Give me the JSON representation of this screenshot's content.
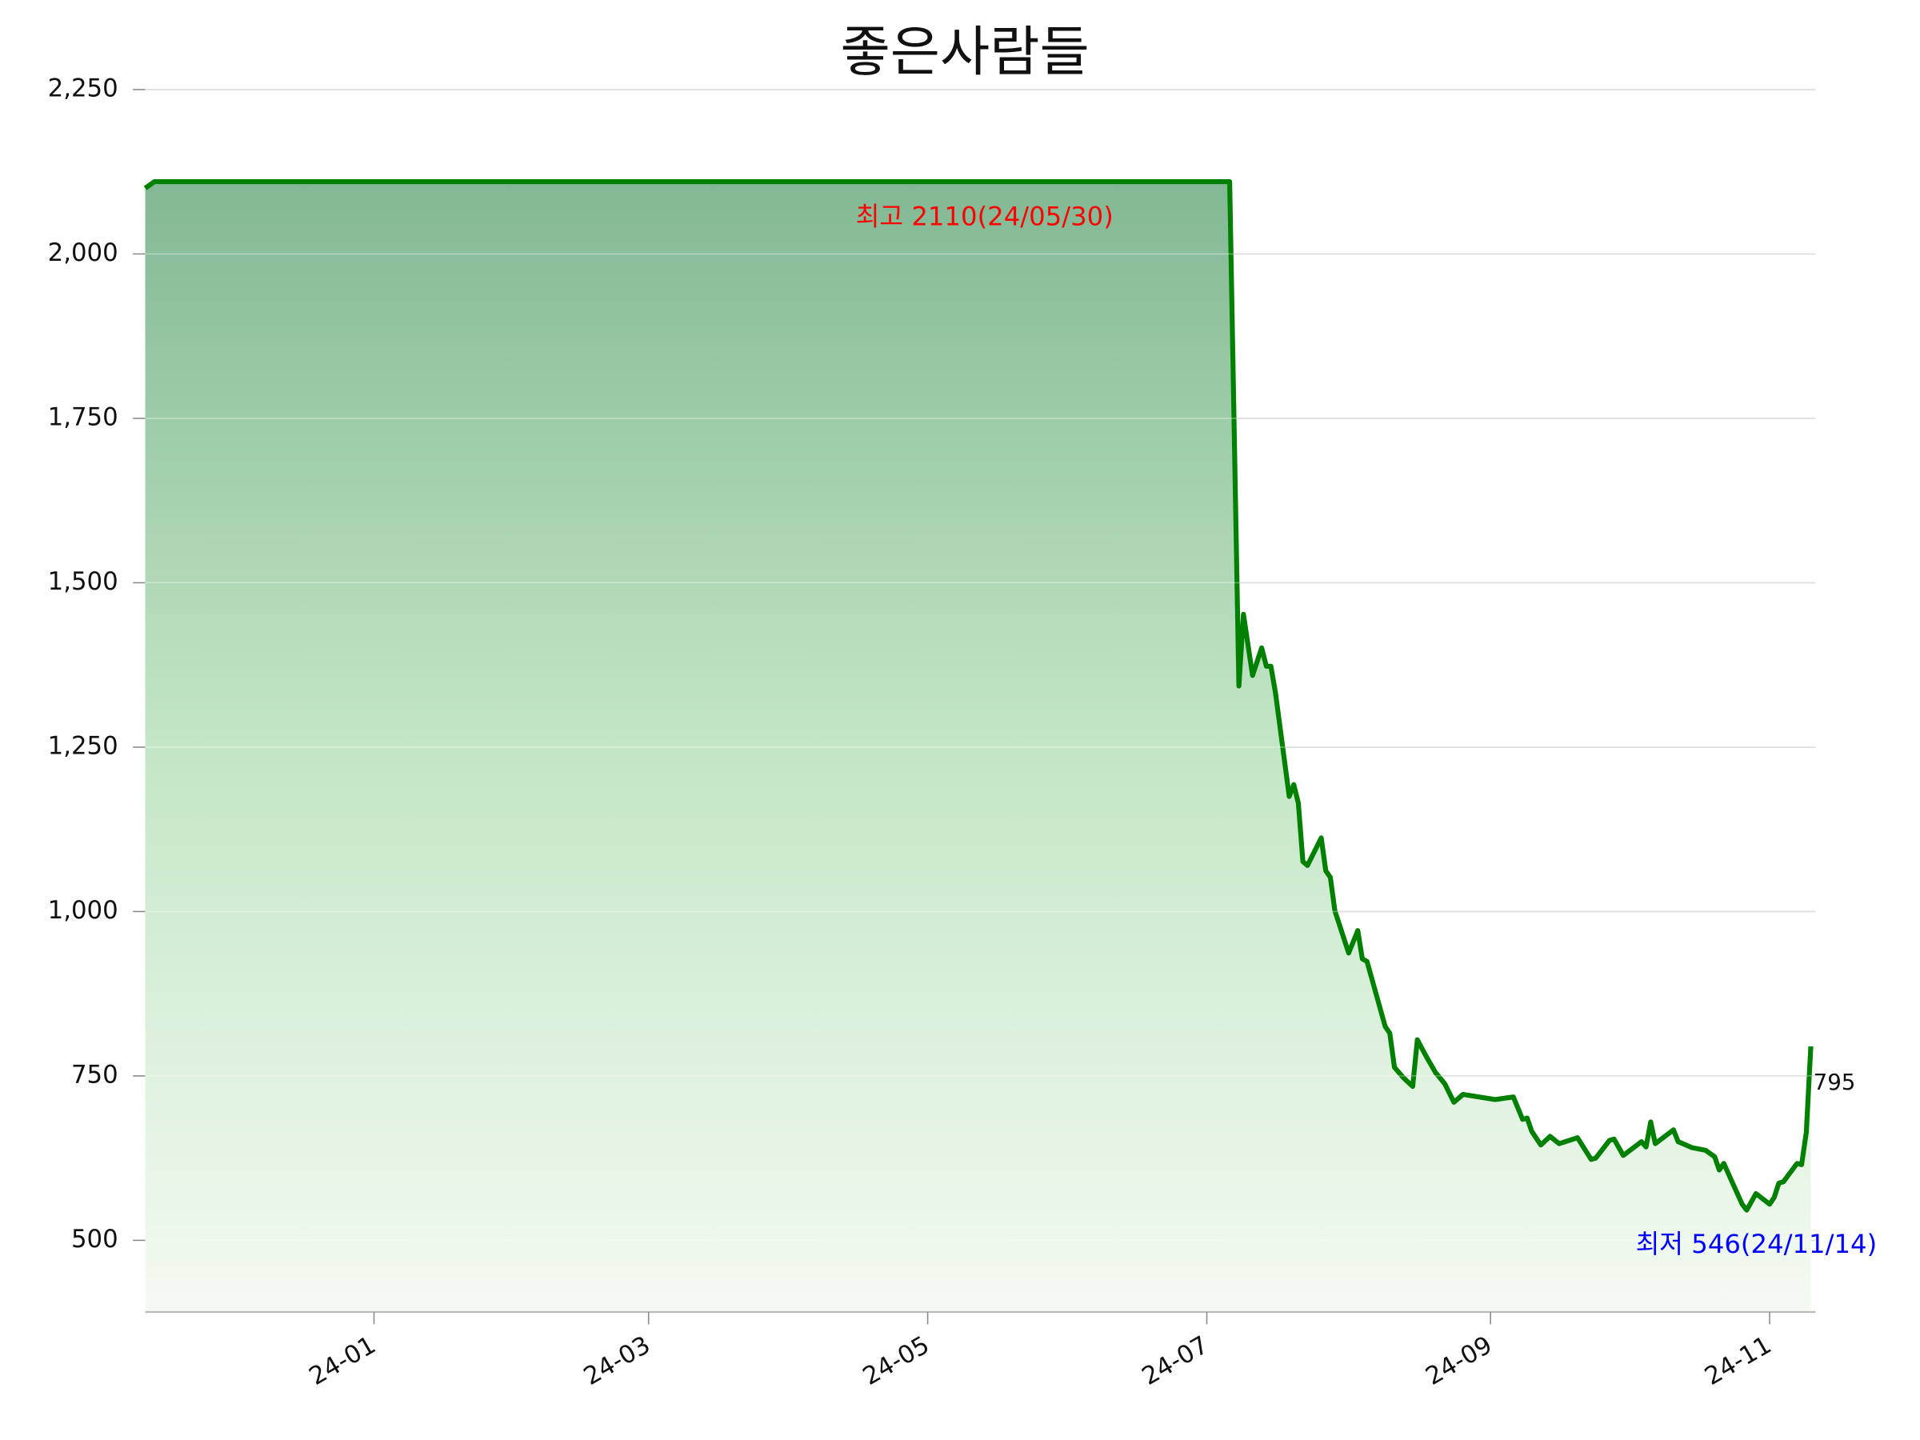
{
  "chart_data": {
    "type": "line",
    "title": "좋은사람들",
    "x": [
      "2023-11-12",
      "2023-11-14",
      "2024-07-06",
      "2024-07-08",
      "2024-07-09",
      "2024-07-11",
      "2024-07-13",
      "2024-07-14",
      "2024-07-15",
      "2024-07-16",
      "2024-07-19",
      "2024-07-20",
      "2024-07-21",
      "2024-07-22",
      "2024-07-23",
      "2024-07-26",
      "2024-07-27",
      "2024-07-28",
      "2024-07-29",
      "2024-08-01",
      "2024-08-03",
      "2024-08-04",
      "2024-08-05",
      "2024-08-09",
      "2024-08-10",
      "2024-08-11",
      "2024-08-13",
      "2024-08-15",
      "2024-08-16",
      "2024-08-18",
      "2024-08-20",
      "2024-08-22",
      "2024-08-24",
      "2024-08-26",
      "2024-09-02",
      "2024-09-06",
      "2024-09-08",
      "2024-09-09",
      "2024-09-10",
      "2024-09-12",
      "2024-09-14",
      "2024-09-16",
      "2024-09-20",
      "2024-09-23",
      "2024-09-24",
      "2024-09-27",
      "2024-09-28",
      "2024-09-30",
      "2024-10-04",
      "2024-10-05",
      "2024-10-06",
      "2024-10-07",
      "2024-10-11",
      "2024-10-12",
      "2024-10-15",
      "2024-10-18",
      "2024-10-20",
      "2024-10-21",
      "2024-10-22",
      "2024-10-26",
      "2024-10-27",
      "2024-10-29",
      "2024-11-01",
      "2024-11-02",
      "2024-11-03",
      "2024-11-04",
      "2024-11-07",
      "2024-11-08",
      "2024-11-09",
      "2024-11-10"
    ],
    "series": [
      {
        "name": "좋은사람들",
        "color": "#008000",
        "values": [
          2100,
          2110,
          2110,
          1343,
          1452,
          1359,
          1401,
          1373,
          1373,
          1333,
          1175,
          1193,
          1165,
          1076,
          1070,
          1112,
          1062,
          1052,
          1001,
          937,
          971,
          928,
          924,
          825,
          815,
          763,
          747,
          734,
          805,
          779,
          755,
          738,
          710,
          722,
          714,
          718,
          684,
          686,
          666,
          645,
          658,
          647,
          656,
          623,
          625,
          652,
          654,
          629,
          650,
          642,
          680,
          647,
          668,
          650,
          641,
          637,
          627,
          607,
          617,
          555,
          546,
          571,
          555,
          565,
          587,
          589,
          617,
          615,
          664,
          795
        ]
      }
    ],
    "xlim": [
      "2023-11-12",
      "2024-11-11"
    ],
    "xticks": [
      {
        "value": "2024-01",
        "label": "24-01"
      },
      {
        "value": "2024-03",
        "label": "24-03"
      },
      {
        "value": "2024-05",
        "label": "24-05"
      },
      {
        "value": "2024-07",
        "label": "24-07"
      },
      {
        "value": "2024-09",
        "label": "24-09"
      },
      {
        "value": "2024-11",
        "label": "24-11"
      }
    ],
    "ylim": [
      391,
      2360
    ],
    "yticks": [
      {
        "value": 500,
        "label": "500"
      },
      {
        "value": 750,
        "label": "750"
      },
      {
        "value": 1000,
        "label": "1,000"
      },
      {
        "value": 1250,
        "label": "1,250"
      },
      {
        "value": 1500,
        "label": "1,500"
      },
      {
        "value": 1750,
        "label": "1,750"
      },
      {
        "value": 2000,
        "label": "2,000"
      },
      {
        "value": 2250,
        "label": "2,250"
      }
    ],
    "grid": true,
    "annotations": [
      {
        "text": "최고 2110(24/05/30)",
        "color": "#ff0000"
      },
      {
        "text": "최저 546(24/11/14)",
        "color": "#0000ff"
      }
    ]
  }
}
